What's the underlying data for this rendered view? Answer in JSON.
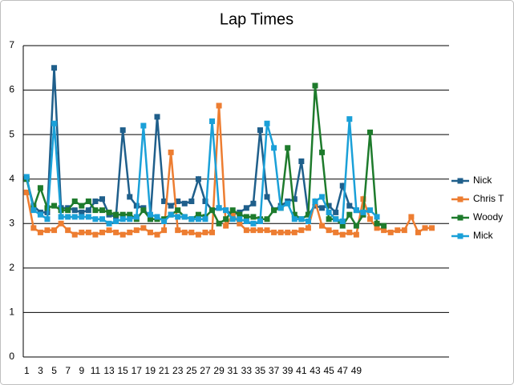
{
  "chart_data": {
    "type": "line",
    "title": "Lap Times",
    "categories": [
      "1",
      null,
      "3",
      null,
      "5",
      null,
      "7",
      null,
      "9",
      null,
      "11",
      null,
      "13",
      null,
      "15",
      null,
      "17",
      null,
      "19",
      null,
      "21",
      null,
      "23",
      null,
      "25",
      null,
      "27",
      null,
      "29",
      null,
      "31",
      null,
      "33",
      null,
      "35",
      null,
      "37",
      null,
      "39",
      null,
      "41",
      null,
      "43",
      null,
      "45",
      null,
      "47",
      null,
      "49",
      null,
      null,
      null,
      null,
      null,
      null,
      null,
      null,
      null,
      null,
      null,
      null,
      null
    ],
    "series": [
      {
        "name": "Nick",
        "color": "#1f5f8b",
        "values": [
          4.0,
          3.4,
          3.25,
          3.25,
          6.5,
          3.35,
          3.35,
          3.3,
          3.25,
          3.3,
          3.5,
          3.55,
          3.2,
          3.15,
          5.1,
          3.6,
          3.4,
          3.35,
          3.1,
          5.4,
          3.5,
          3.4,
          3.5,
          3.45,
          3.5,
          4.0,
          3.5,
          3.3,
          3.35,
          3.3,
          3.2,
          3.25,
          3.35,
          3.45,
          5.1,
          3.6,
          3.3,
          3.4,
          3.5,
          3.55,
          4.4,
          3.2,
          3.4,
          3.35,
          3.4,
          3.25,
          3.85,
          3.4,
          3.3,
          3.2,
          null,
          null,
          null,
          null,
          null,
          null,
          null,
          null,
          null,
          null,
          null,
          null
        ]
      },
      {
        "name": "Chris T",
        "color": "#ed7d31",
        "values": [
          3.7,
          2.9,
          2.8,
          2.85,
          2.85,
          3.0,
          2.85,
          2.75,
          2.8,
          2.8,
          2.75,
          2.8,
          2.85,
          2.8,
          2.75,
          2.8,
          2.85,
          2.9,
          2.8,
          2.75,
          2.85,
          4.6,
          2.85,
          2.8,
          2.8,
          2.75,
          2.8,
          2.8,
          5.65,
          2.95,
          3.2,
          3.0,
          2.85,
          2.85,
          2.85,
          2.85,
          2.8,
          2.8,
          2.8,
          2.8,
          2.85,
          2.9,
          3.5,
          2.95,
          2.85,
          2.8,
          2.75,
          2.8,
          2.75,
          3.55,
          3.1,
          2.9,
          2.85,
          2.8,
          2.85,
          2.85,
          3.15,
          2.8,
          2.9,
          2.9,
          null,
          null
        ]
      },
      {
        "name": "Woody",
        "color": "#1e7b2c",
        "values": [
          4.0,
          3.35,
          3.8,
          3.35,
          3.4,
          3.3,
          3.3,
          3.5,
          3.4,
          3.5,
          3.3,
          3.3,
          3.25,
          3.2,
          3.2,
          3.2,
          3.1,
          3.3,
          3.1,
          3.1,
          3.1,
          3.2,
          3.3,
          3.15,
          3.1,
          3.2,
          3.15,
          3.3,
          3.0,
          3.1,
          3.3,
          3.2,
          3.15,
          3.15,
          3.1,
          3.1,
          3.3,
          3.35,
          4.7,
          3.2,
          3.1,
          3.2,
          6.1,
          4.6,
          3.1,
          3.1,
          2.95,
          3.2,
          2.95,
          3.2,
          5.05,
          3.0,
          2.95,
          null,
          null,
          null,
          null,
          null,
          null,
          null,
          null,
          null
        ]
      },
      {
        "name": "Mick",
        "color": "#1aa0d8",
        "values": [
          4.05,
          3.3,
          3.2,
          3.1,
          5.25,
          3.15,
          3.15,
          3.15,
          3.15,
          3.15,
          3.1,
          3.1,
          3.0,
          3.05,
          3.1,
          3.1,
          3.15,
          5.2,
          3.2,
          3.15,
          3.05,
          3.2,
          3.15,
          3.15,
          3.1,
          3.1,
          3.1,
          5.3,
          3.35,
          3.3,
          3.1,
          3.1,
          3.05,
          3.0,
          3.05,
          5.25,
          4.7,
          3.35,
          3.45,
          3.1,
          3.1,
          3.05,
          3.5,
          3.6,
          3.25,
          3.1,
          3.05,
          5.35,
          3.3,
          3.25,
          3.3,
          3.15,
          null,
          null,
          null,
          null,
          null,
          null,
          null,
          null,
          null,
          null
        ]
      }
    ],
    "ylim": [
      0,
      7
    ],
    "yticks": [
      0,
      1,
      2,
      3,
      4,
      5,
      6,
      7
    ],
    "grid": true,
    "legend": "right"
  }
}
